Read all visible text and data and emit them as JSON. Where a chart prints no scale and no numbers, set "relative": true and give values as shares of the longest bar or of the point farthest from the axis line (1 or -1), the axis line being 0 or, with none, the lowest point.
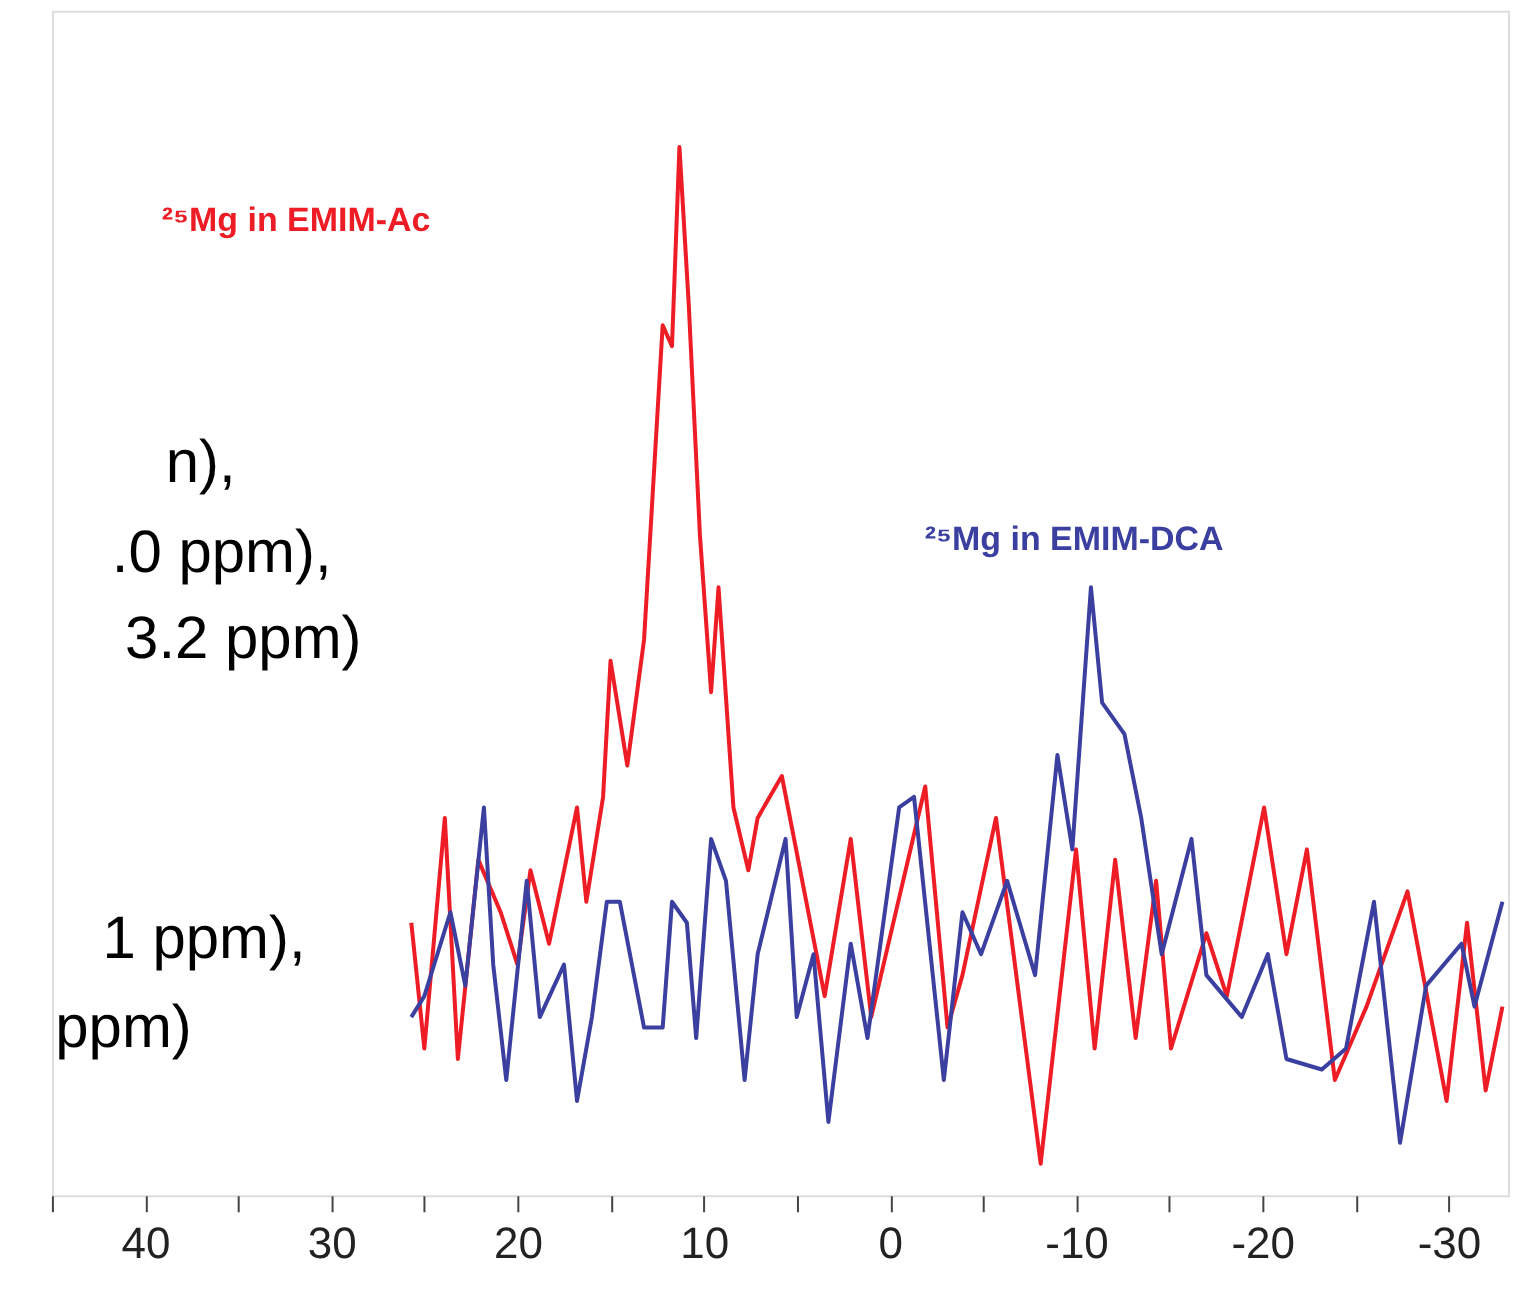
{
  "chart_data": {
    "type": "line",
    "relative": true,
    "xlim": [
      45,
      -33.2
    ],
    "xticks": [
      {
        "value": 45,
        "label": null
      },
      40,
      {
        "value": 35,
        "label": null
      },
      30,
      {
        "value": 25,
        "label": null
      },
      20,
      {
        "value": 15,
        "label": null
      },
      10,
      {
        "value": 5,
        "label": null
      },
      0,
      {
        "value": -5,
        "label": null
      },
      -10,
      {
        "value": -15,
        "label": null
      },
      -20,
      {
        "value": -25,
        "label": null
      },
      -30
    ],
    "grid": false,
    "marker": "none",
    "line_style": "solid",
    "annotations": [
      "n),",
      ".0 ppm),",
      "3.2 ppm)",
      "1 ppm),",
      "ppm)"
    ],
    "series": [
      {
        "name": "²⁵Mg in EMIM-Ac",
        "color": "#ee1c25",
        "x": [
          25.7,
          25.0,
          23.9,
          23.2,
          22.1,
          20.9,
          20.0,
          19.3,
          18.3,
          16.8,
          16.3,
          15.4,
          15.0,
          14.1,
          13.2,
          12.2,
          11.7,
          11.3,
          10.8,
          10.2,
          9.6,
          9.2,
          8.4,
          7.6,
          7.1,
          5.8,
          3.5,
          2.1,
          1.0,
          -1.9,
          -3.1,
          -3.9,
          -5.7,
          -8.1,
          -10.0,
          -11.0,
          -12.1,
          -13.2,
          -14.3,
          -15.1,
          -17.0,
          -18.1,
          -20.1,
          -21.3,
          -22.4,
          -23.9,
          -25.6,
          -27.8,
          -29.9,
          -31.0,
          -32.0,
          -32.9
        ],
        "values": [
          0.26,
          0.14,
          0.36,
          0.13,
          0.32,
          0.27,
          0.22,
          0.31,
          0.24,
          0.37,
          0.28,
          0.38,
          0.51,
          0.41,
          0.53,
          0.83,
          0.81,
          1.0,
          0.85,
          0.63,
          0.48,
          0.58,
          0.37,
          0.31,
          0.36,
          0.4,
          0.19,
          0.34,
          0.17,
          0.39,
          0.16,
          0.21,
          0.36,
          0.03,
          0.33,
          0.14,
          0.32,
          0.15,
          0.3,
          0.14,
          0.25,
          0.19,
          0.37,
          0.23,
          0.33,
          0.11,
          0.18,
          0.29,
          0.09,
          0.26,
          0.1,
          0.18
        ]
      },
      {
        "name": "²⁵Mg in EMIM-DCA",
        "color": "#3a3fa0",
        "x": [
          25.7,
          25.0,
          23.6,
          22.8,
          21.8,
          21.3,
          20.6,
          19.5,
          18.8,
          17.5,
          16.8,
          16.0,
          15.2,
          14.5,
          13.2,
          12.2,
          11.7,
          10.9,
          10.4,
          9.6,
          8.8,
          7.8,
          7.1,
          5.6,
          5.0,
          4.1,
          3.3,
          2.1,
          1.2,
          -0.5,
          -1.3,
          -2.9,
          -3.9,
          -4.9,
          -6.3,
          -7.8,
          -9.0,
          -9.8,
          -10.8,
          -11.4,
          -12.6,
          -13.5,
          -14.6,
          -16.2,
          -17.0,
          -18.9,
          -20.3,
          -21.3,
          -23.2,
          -24.5,
          -26.0,
          -27.4,
          -28.8,
          -30.7,
          -31.4,
          -32.9
        ],
        "values": [
          0.17,
          0.19,
          0.27,
          0.2,
          0.37,
          0.22,
          0.11,
          0.3,
          0.17,
          0.22,
          0.09,
          0.17,
          0.28,
          0.28,
          0.16,
          0.16,
          0.28,
          0.26,
          0.15,
          0.34,
          0.3,
          0.11,
          0.23,
          0.34,
          0.17,
          0.23,
          0.07,
          0.24,
          0.15,
          0.37,
          0.38,
          0.11,
          0.27,
          0.23,
          0.3,
          0.21,
          0.42,
          0.33,
          0.58,
          0.47,
          0.44,
          0.36,
          0.23,
          0.34,
          0.21,
          0.17,
          0.23,
          0.13,
          0.12,
          0.14,
          0.28,
          0.05,
          0.2,
          0.24,
          0.18,
          0.28
        ]
      }
    ]
  }
}
